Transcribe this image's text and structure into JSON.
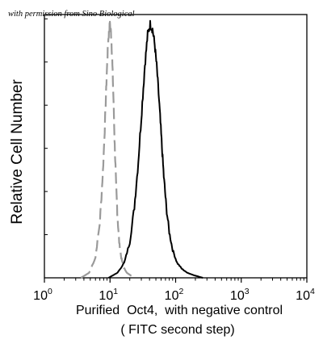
{
  "credit": "with permission from Sino Biological",
  "chart_data": {
    "type": "line",
    "title": "",
    "ylabel": "Relative Cell Number",
    "xlabel_line1": "Purified  Oct4,  with negative control",
    "xlabel_line2": "( FITC second step)",
    "x_scale": "log",
    "xlim": [
      1,
      10000
    ],
    "ylim": [
      0,
      1.0
    ],
    "grid": false,
    "legend": "none",
    "x_ticks": [
      {
        "base": "10",
        "exp": "0"
      },
      {
        "base": "10",
        "exp": "1"
      },
      {
        "base": "10",
        "exp": "2"
      },
      {
        "base": "10",
        "exp": "3"
      },
      {
        "base": "10",
        "exp": "4"
      }
    ],
    "y_tick_count": 6,
    "series": [
      {
        "style": "dashed",
        "color": "#9a9a9a",
        "x": [
          3.6,
          4.8,
          6.0,
          7.0,
          7.8,
          8.4,
          8.9,
          9.3,
          9.7,
          10.0,
          10.4,
          10.8,
          11.3,
          11.8,
          12.4,
          13.0,
          13.8,
          14.8,
          16.2,
          18.0,
          20.5,
          24.0
        ],
        "y": [
          0.0,
          0.02,
          0.08,
          0.22,
          0.42,
          0.62,
          0.8,
          0.92,
          0.98,
          1.0,
          0.96,
          0.86,
          0.7,
          0.52,
          0.36,
          0.24,
          0.14,
          0.08,
          0.04,
          0.02,
          0.01,
          0.0
        ]
      },
      {
        "style": "solid",
        "color": "#000000",
        "x": [
          9.5,
          13.0,
          16.5,
          20.0,
          23.5,
          27.0,
          30.5,
          34.0,
          37.5,
          41.0,
          44.5,
          48.0,
          52.0,
          56.5,
          61.0,
          66.0,
          72.0,
          80.0,
          90.0,
          105.0,
          125.0,
          150.0,
          190.0,
          260.0
        ],
        "y": [
          0.0,
          0.02,
          0.06,
          0.14,
          0.28,
          0.46,
          0.66,
          0.84,
          0.96,
          1.0,
          0.98,
          0.92,
          0.82,
          0.68,
          0.54,
          0.4,
          0.28,
          0.18,
          0.11,
          0.06,
          0.035,
          0.02,
          0.01,
          0.0
        ]
      }
    ]
  }
}
